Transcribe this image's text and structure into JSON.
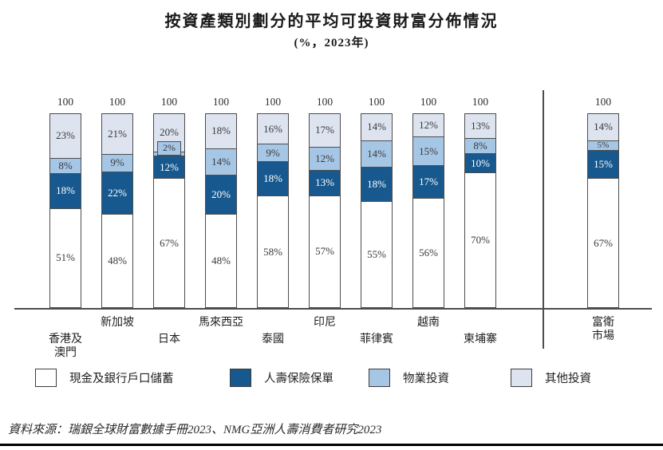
{
  "title": "按資產類別劃分的平均可投資財富分佈情況",
  "subtitle": "(%，2023年)",
  "source": "資料來源：瑞銀全球財富數據手冊2023、NMG亞洲人壽消費者研究2023",
  "legend": [
    {
      "label": "現金及銀行戶口儲蓄",
      "color": "#ffffff"
    },
    {
      "label": "人壽保險保單",
      "color": "#17598f"
    },
    {
      "label": "物業投資",
      "color": "#a6c6e6"
    },
    {
      "label": "其他投資",
      "color": "#dde4f0"
    }
  ],
  "colors": {
    "bar_border": "#4d4d4d",
    "axis": "#4d4d4d",
    "bottom_rule": "#000000",
    "label_on_dark": "#ffffff",
    "label_on_light": "#3a3a3a"
  },
  "chart_data": {
    "type": "bar",
    "stacked": true,
    "unit": "%",
    "total_label": "100",
    "legend_position": "bottom",
    "grid": false,
    "categories": [
      "香港及\n澳門",
      "新加坡",
      "日本",
      "馬來西亞",
      "泰國",
      "印尼",
      "菲律賓",
      "越南",
      "柬埔寨",
      "富衛\n市場"
    ],
    "series": [
      {
        "name": "現金及銀行戶口儲蓄",
        "values": [
          51,
          48,
          67,
          48,
          58,
          57,
          55,
          56,
          70,
          67
        ]
      },
      {
        "name": "人壽保險保單",
        "values": [
          18,
          22,
          12,
          20,
          18,
          13,
          18,
          17,
          10,
          15
        ]
      },
      {
        "name": "物業投資",
        "values": [
          8,
          9,
          2,
          14,
          9,
          12,
          14,
          15,
          8,
          5
        ]
      },
      {
        "name": "其他投資",
        "values": [
          23,
          21,
          20,
          18,
          16,
          17,
          14,
          12,
          13,
          14
        ]
      }
    ],
    "divider_after_category_index": 8
  }
}
